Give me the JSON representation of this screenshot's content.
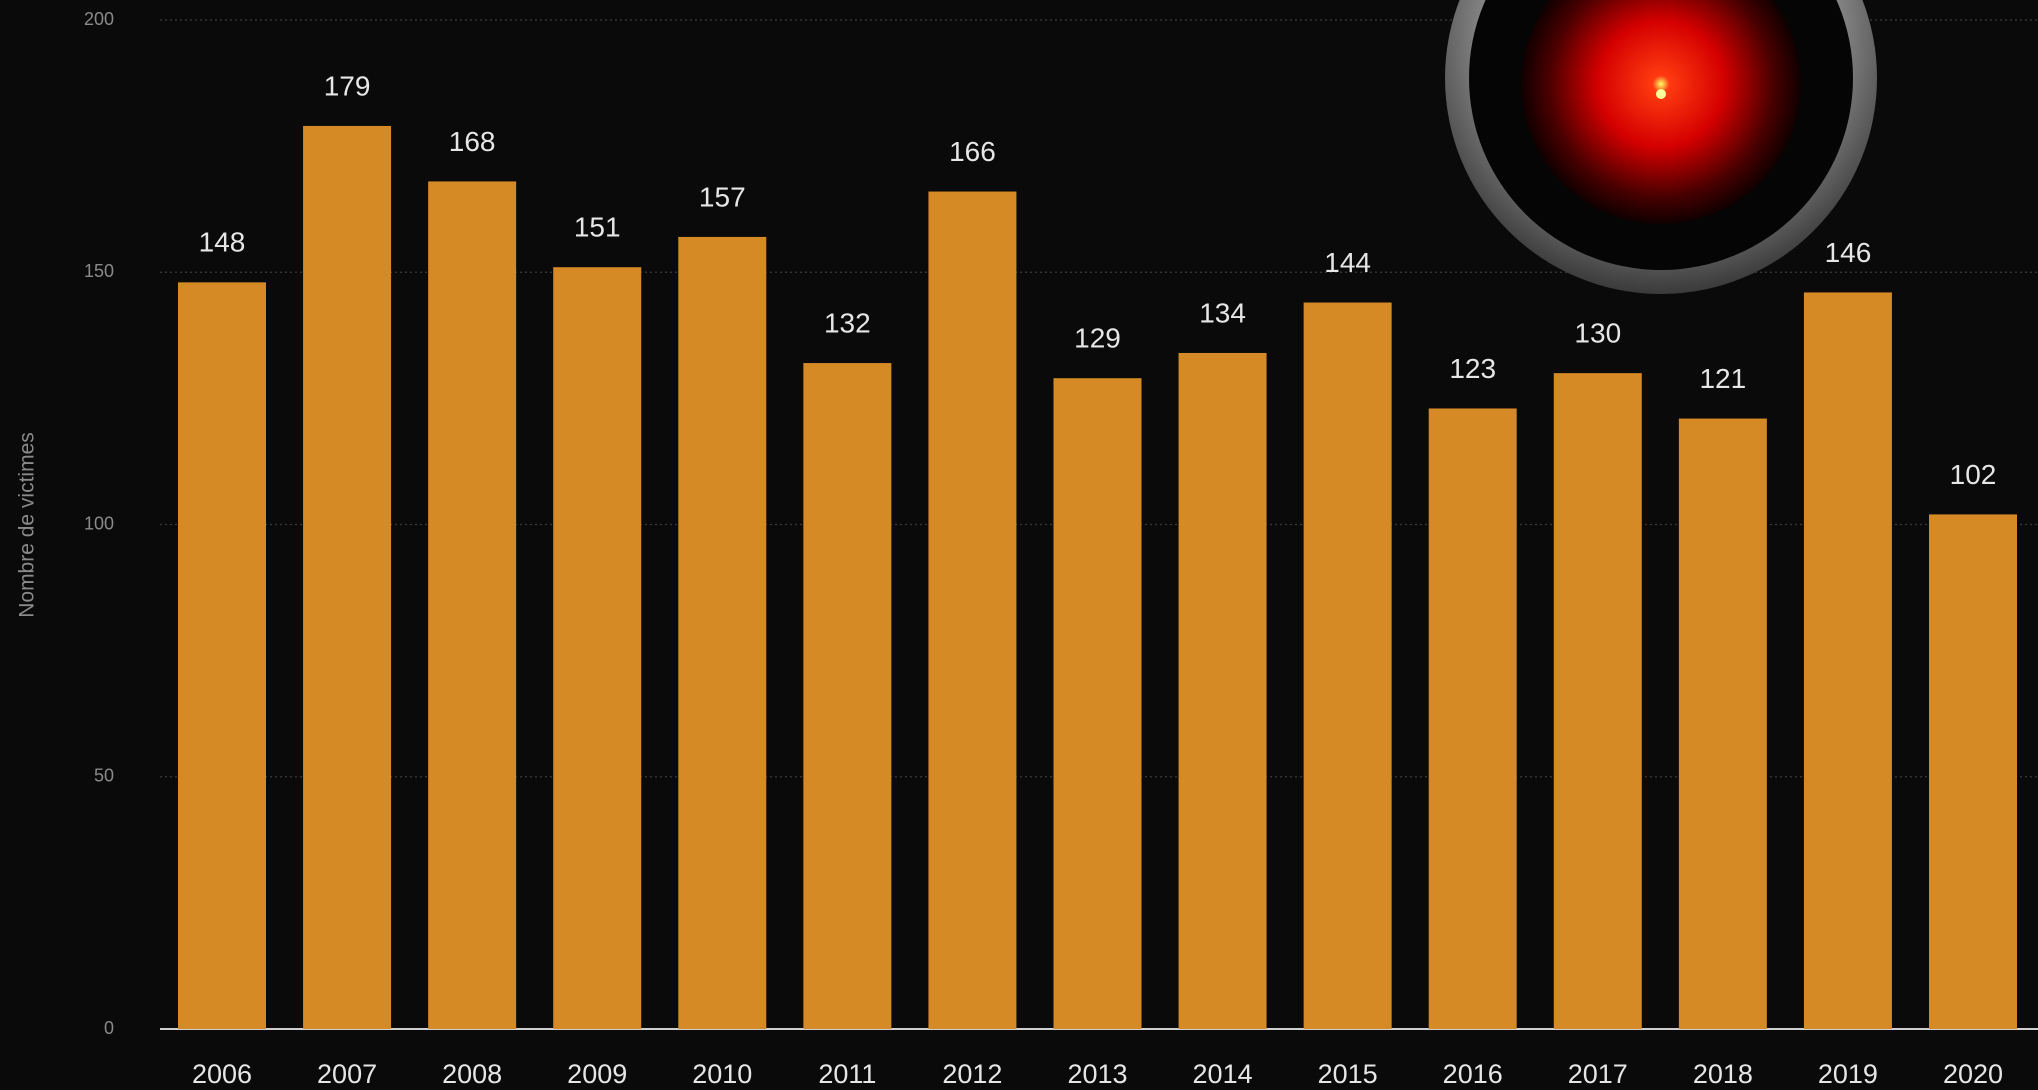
{
  "chart_data": {
    "type": "bar",
    "y_label": "Nombre de victimes",
    "categories": [
      "2006",
      "2007",
      "2008",
      "2009",
      "2010",
      "2011",
      "2012",
      "2013",
      "2014",
      "2015",
      "2016",
      "2017",
      "2018",
      "2019",
      "2020"
    ],
    "values": [
      148,
      179,
      168,
      151,
      157,
      132,
      166,
      129,
      134,
      144,
      123,
      130,
      121,
      146,
      102
    ],
    "color": "#d68a26",
    "ylim": [
      0,
      200
    ],
    "yticks": [
      0,
      50,
      100,
      150,
      200
    ],
    "grid": true
  }
}
